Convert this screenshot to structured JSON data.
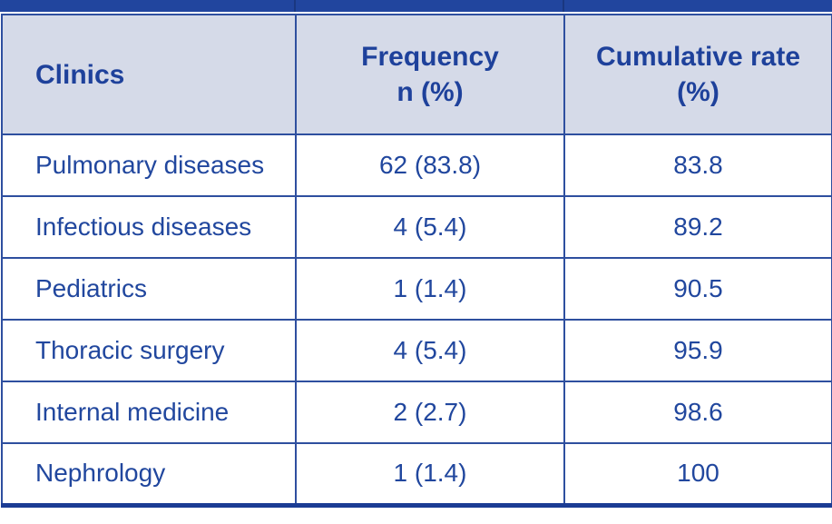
{
  "colors": {
    "top_bar_blue": "#21459E",
    "border_blue": "#2E4F9F",
    "bottom_border_blue": "#1B3C94",
    "header_background": "#D5DAE8",
    "header_text_blue": "#1E419B",
    "body_text_blue": "#21479E"
  },
  "table": {
    "headers": [
      "Clinics",
      "Frequency\nn (%)",
      "Cumulative rate\n(%)"
    ],
    "rows": [
      {
        "clinic": "Pulmonary diseases",
        "frequency": "62 (83.8)",
        "cumulative": "83.8"
      },
      {
        "clinic": "Infectious diseases",
        "frequency": "4 (5.4)",
        "cumulative": "89.2"
      },
      {
        "clinic": "Pediatrics",
        "frequency": "1 (1.4)",
        "cumulative": "90.5"
      },
      {
        "clinic": "Thoracic surgery",
        "frequency": "4 (5.4)",
        "cumulative": "95.9"
      },
      {
        "clinic": "Internal medicine",
        "frequency": "2 (2.7)",
        "cumulative": "98.6"
      },
      {
        "clinic": "Nephrology",
        "frequency": "1 (1.4)",
        "cumulative": "100"
      }
    ]
  },
  "chart_data": {
    "type": "table",
    "title": "",
    "columns": [
      "Clinics",
      "Frequency n (%)",
      "Cumulative rate (%)"
    ],
    "rows": [
      [
        "Pulmonary diseases",
        "62 (83.8)",
        "83.8"
      ],
      [
        "Infectious diseases",
        "4 (5.4)",
        "89.2"
      ],
      [
        "Pediatrics",
        "1 (1.4)",
        "90.5"
      ],
      [
        "Thoracic surgery",
        "4 (5.4)",
        "95.9"
      ],
      [
        "Internal medicine",
        "2 (2.7)",
        "98.6"
      ],
      [
        "Nephrology",
        "1 (1.4)",
        "100"
      ]
    ],
    "notes": {
      "frequency_n_values": [
        62,
        4,
        1,
        4,
        2,
        1
      ],
      "frequency_pct_values": [
        83.8,
        5.4,
        1.4,
        5.4,
        2.7,
        1.4
      ],
      "cumulative_rate_values": [
        83.8,
        89.2,
        90.5,
        95.9,
        98.6,
        100
      ]
    }
  }
}
